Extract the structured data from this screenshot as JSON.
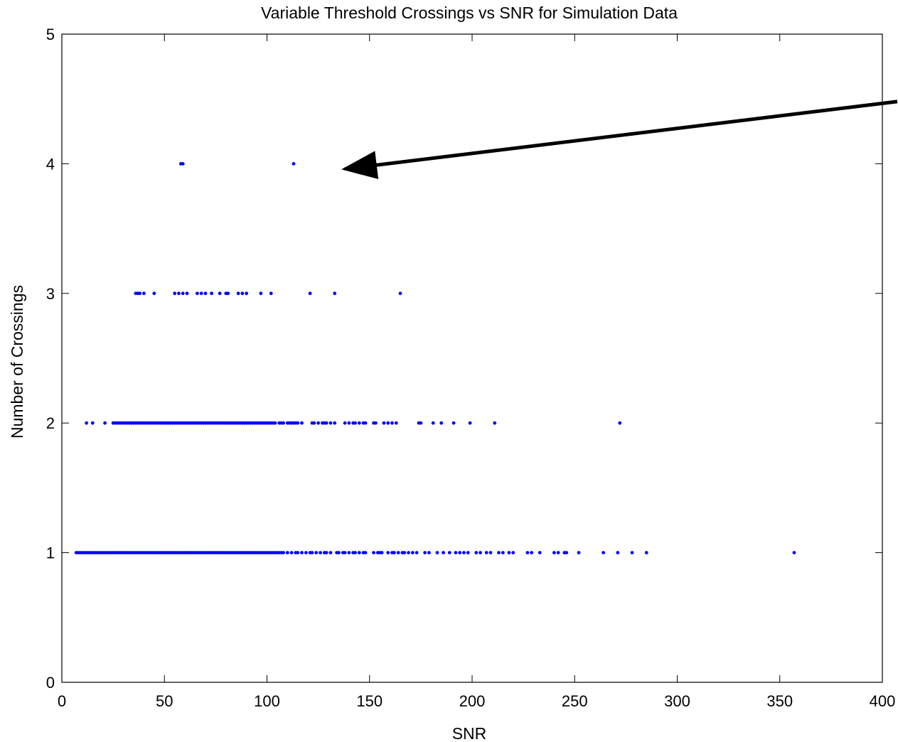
{
  "chart_data": {
    "type": "scatter",
    "title": "Variable Threshold Crossings vs SNR for Simulation Data",
    "xlabel": "SNR",
    "ylabel": "Number of Crossings",
    "xlim": [
      0,
      400
    ],
    "ylim": [
      0,
      5
    ],
    "xticks": [
      0,
      50,
      100,
      150,
      200,
      250,
      300,
      350,
      400
    ],
    "yticks": [
      0,
      1,
      2,
      3,
      4,
      5
    ],
    "grid": false,
    "marker_color": "#0000ff",
    "annotation": {
      "type": "arrow",
      "from": [
        408,
        4.48
      ],
      "to": [
        138,
        3.96
      ],
      "color": "#000000"
    },
    "series": [
      {
        "points": [
          [
            58,
            4
          ],
          [
            59,
            4
          ],
          [
            113,
            4
          ],
          [
            36,
            3
          ],
          [
            37,
            3
          ],
          [
            38,
            3
          ],
          [
            40,
            3
          ],
          [
            45,
            3
          ],
          [
            55,
            3
          ],
          [
            57,
            3
          ],
          [
            59,
            3
          ],
          [
            61,
            3
          ],
          [
            66,
            3
          ],
          [
            68,
            3
          ],
          [
            70,
            3
          ],
          [
            73,
            3
          ],
          [
            77,
            3
          ],
          [
            80,
            3
          ],
          [
            81,
            3
          ],
          [
            86,
            3
          ],
          [
            88,
            3
          ],
          [
            90,
            3
          ],
          [
            97,
            3
          ],
          [
            102,
            3
          ],
          [
            121,
            3
          ],
          [
            133,
            3
          ],
          [
            165,
            3
          ],
          [
            12,
            2
          ],
          [
            15,
            2
          ],
          [
            21,
            2
          ],
          [
            25,
            2
          ],
          [
            26,
            2
          ],
          [
            27,
            2
          ],
          [
            28,
            2
          ],
          [
            29,
            2
          ],
          [
            30,
            2
          ],
          [
            31,
            2
          ],
          [
            32,
            2
          ],
          [
            33,
            2
          ],
          [
            34,
            2
          ],
          [
            35,
            2
          ],
          [
            36,
            2
          ],
          [
            37,
            2
          ],
          [
            38,
            2
          ],
          [
            39,
            2
          ],
          [
            40,
            2
          ],
          [
            41,
            2
          ],
          [
            42,
            2
          ],
          [
            43,
            2
          ],
          [
            44,
            2
          ],
          [
            45,
            2
          ],
          [
            46,
            2
          ],
          [
            47,
            2
          ],
          [
            48,
            2
          ],
          [
            49,
            2
          ],
          [
            50,
            2
          ],
          [
            51,
            2
          ],
          [
            52,
            2
          ],
          [
            53,
            2
          ],
          [
            54,
            2
          ],
          [
            55,
            2
          ],
          [
            56,
            2
          ],
          [
            57,
            2
          ],
          [
            58,
            2
          ],
          [
            59,
            2
          ],
          [
            60,
            2
          ],
          [
            61,
            2
          ],
          [
            62,
            2
          ],
          [
            63,
            2
          ],
          [
            64,
            2
          ],
          [
            65,
            2
          ],
          [
            66,
            2
          ],
          [
            67,
            2
          ],
          [
            68,
            2
          ],
          [
            69,
            2
          ],
          [
            70,
            2
          ],
          [
            71,
            2
          ],
          [
            72,
            2
          ],
          [
            73,
            2
          ],
          [
            74,
            2
          ],
          [
            75,
            2
          ],
          [
            76,
            2
          ],
          [
            77,
            2
          ],
          [
            78,
            2
          ],
          [
            79,
            2
          ],
          [
            80,
            2
          ],
          [
            81,
            2
          ],
          [
            82,
            2
          ],
          [
            83,
            2
          ],
          [
            84,
            2
          ],
          [
            85,
            2
          ],
          [
            86,
            2
          ],
          [
            87,
            2
          ],
          [
            88,
            2
          ],
          [
            89,
            2
          ],
          [
            90,
            2
          ],
          [
            91,
            2
          ],
          [
            92,
            2
          ],
          [
            93,
            2
          ],
          [
            94,
            2
          ],
          [
            95,
            2
          ],
          [
            96,
            2
          ],
          [
            97,
            2
          ],
          [
            98,
            2
          ],
          [
            99,
            2
          ],
          [
            100,
            2
          ],
          [
            101,
            2
          ],
          [
            102,
            2
          ],
          [
            103,
            2
          ],
          [
            104,
            2
          ],
          [
            106,
            2
          ],
          [
            107,
            2
          ],
          [
            108,
            2
          ],
          [
            110,
            2
          ],
          [
            111,
            2
          ],
          [
            112,
            2
          ],
          [
            113,
            2
          ],
          [
            114,
            2
          ],
          [
            115,
            2
          ],
          [
            117,
            2
          ],
          [
            122,
            2
          ],
          [
            123,
            2
          ],
          [
            125,
            2
          ],
          [
            127,
            2
          ],
          [
            128,
            2
          ],
          [
            129,
            2
          ],
          [
            131,
            2
          ],
          [
            133,
            2
          ],
          [
            138,
            2
          ],
          [
            140,
            2
          ],
          [
            142,
            2
          ],
          [
            143,
            2
          ],
          [
            145,
            2
          ],
          [
            147,
            2
          ],
          [
            148,
            2
          ],
          [
            152,
            2
          ],
          [
            153,
            2
          ],
          [
            157,
            2
          ],
          [
            159,
            2
          ],
          [
            161,
            2
          ],
          [
            163,
            2
          ],
          [
            174,
            2
          ],
          [
            175,
            2
          ],
          [
            181,
            2
          ],
          [
            185,
            2
          ],
          [
            191,
            2
          ],
          [
            199,
            2
          ],
          [
            211,
            2
          ],
          [
            272,
            2
          ],
          [
            7,
            1
          ],
          [
            8,
            1
          ],
          [
            9,
            1
          ],
          [
            10,
            1
          ],
          [
            11,
            1
          ],
          [
            12,
            1
          ],
          [
            13,
            1
          ],
          [
            14,
            1
          ],
          [
            15,
            1
          ],
          [
            16,
            1
          ],
          [
            17,
            1
          ],
          [
            18,
            1
          ],
          [
            19,
            1
          ],
          [
            20,
            1
          ],
          [
            21,
            1
          ],
          [
            22,
            1
          ],
          [
            23,
            1
          ],
          [
            24,
            1
          ],
          [
            25,
            1
          ],
          [
            26,
            1
          ],
          [
            27,
            1
          ],
          [
            28,
            1
          ],
          [
            29,
            1
          ],
          [
            30,
            1
          ],
          [
            31,
            1
          ],
          [
            32,
            1
          ],
          [
            33,
            1
          ],
          [
            34,
            1
          ],
          [
            35,
            1
          ],
          [
            36,
            1
          ],
          [
            37,
            1
          ],
          [
            38,
            1
          ],
          [
            39,
            1
          ],
          [
            40,
            1
          ],
          [
            41,
            1
          ],
          [
            42,
            1
          ],
          [
            43,
            1
          ],
          [
            44,
            1
          ],
          [
            45,
            1
          ],
          [
            46,
            1
          ],
          [
            47,
            1
          ],
          [
            48,
            1
          ],
          [
            49,
            1
          ],
          [
            50,
            1
          ],
          [
            51,
            1
          ],
          [
            52,
            1
          ],
          [
            53,
            1
          ],
          [
            54,
            1
          ],
          [
            55,
            1
          ],
          [
            56,
            1
          ],
          [
            57,
            1
          ],
          [
            58,
            1
          ],
          [
            59,
            1
          ],
          [
            60,
            1
          ],
          [
            61,
            1
          ],
          [
            62,
            1
          ],
          [
            63,
            1
          ],
          [
            64,
            1
          ],
          [
            65,
            1
          ],
          [
            66,
            1
          ],
          [
            67,
            1
          ],
          [
            68,
            1
          ],
          [
            69,
            1
          ],
          [
            70,
            1
          ],
          [
            71,
            1
          ],
          [
            72,
            1
          ],
          [
            73,
            1
          ],
          [
            74,
            1
          ],
          [
            75,
            1
          ],
          [
            76,
            1
          ],
          [
            77,
            1
          ],
          [
            78,
            1
          ],
          [
            79,
            1
          ],
          [
            80,
            1
          ],
          [
            81,
            1
          ],
          [
            82,
            1
          ],
          [
            83,
            1
          ],
          [
            84,
            1
          ],
          [
            85,
            1
          ],
          [
            86,
            1
          ],
          [
            87,
            1
          ],
          [
            88,
            1
          ],
          [
            89,
            1
          ],
          [
            90,
            1
          ],
          [
            91,
            1
          ],
          [
            92,
            1
          ],
          [
            93,
            1
          ],
          [
            94,
            1
          ],
          [
            95,
            1
          ],
          [
            96,
            1
          ],
          [
            97,
            1
          ],
          [
            98,
            1
          ],
          [
            99,
            1
          ],
          [
            100,
            1
          ],
          [
            101,
            1
          ],
          [
            102,
            1
          ],
          [
            103,
            1
          ],
          [
            104,
            1
          ],
          [
            105,
            1
          ],
          [
            106,
            1
          ],
          [
            107,
            1
          ],
          [
            108,
            1
          ],
          [
            110,
            1
          ],
          [
            112,
            1
          ],
          [
            114,
            1
          ],
          [
            115,
            1
          ],
          [
            117,
            1
          ],
          [
            119,
            1
          ],
          [
            121,
            1
          ],
          [
            122,
            1
          ],
          [
            124,
            1
          ],
          [
            126,
            1
          ],
          [
            128,
            1
          ],
          [
            129,
            1
          ],
          [
            131,
            1
          ],
          [
            134,
            1
          ],
          [
            135,
            1
          ],
          [
            137,
            1
          ],
          [
            138,
            1
          ],
          [
            140,
            1
          ],
          [
            142,
            1
          ],
          [
            143,
            1
          ],
          [
            145,
            1
          ],
          [
            147,
            1
          ],
          [
            148,
            1
          ],
          [
            152,
            1
          ],
          [
            154,
            1
          ],
          [
            155,
            1
          ],
          [
            156,
            1
          ],
          [
            159,
            1
          ],
          [
            161,
            1
          ],
          [
            162,
            1
          ],
          [
            164,
            1
          ],
          [
            166,
            1
          ],
          [
            167,
            1
          ],
          [
            169,
            1
          ],
          [
            171,
            1
          ],
          [
            173,
            1
          ],
          [
            177,
            1
          ],
          [
            179,
            1
          ],
          [
            183,
            1
          ],
          [
            186,
            1
          ],
          [
            189,
            1
          ],
          [
            192,
            1
          ],
          [
            194,
            1
          ],
          [
            196,
            1
          ],
          [
            198,
            1
          ],
          [
            202,
            1
          ],
          [
            204,
            1
          ],
          [
            207,
            1
          ],
          [
            209,
            1
          ],
          [
            213,
            1
          ],
          [
            215,
            1
          ],
          [
            218,
            1
          ],
          [
            220,
            1
          ],
          [
            227,
            1
          ],
          [
            229,
            1
          ],
          [
            233,
            1
          ],
          [
            240,
            1
          ],
          [
            242,
            1
          ],
          [
            245,
            1
          ],
          [
            246,
            1
          ],
          [
            252,
            1
          ],
          [
            264,
            1
          ],
          [
            271,
            1
          ],
          [
            278,
            1
          ],
          [
            285,
            1
          ],
          [
            357,
            1
          ]
        ]
      }
    ]
  }
}
